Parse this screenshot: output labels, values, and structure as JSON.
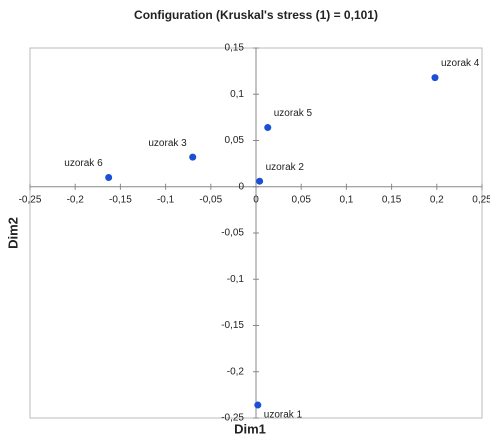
{
  "chart_data": {
    "type": "scatter",
    "title": "Configuration (Kruskal's stress (1) = 0,101)",
    "x_label": "Dim1",
    "y_label": "Dim2",
    "point_labels": [
      "uzorak 1",
      "uzorak 2",
      "uzorak 3",
      "uzorak 4",
      "uzorak 5",
      "uzorak 6"
    ],
    "x": [
      0.002,
      0.004,
      -0.07,
      0.198,
      0.013,
      -0.163
    ],
    "values": [
      -0.236,
      0.006,
      0.032,
      0.118,
      0.064,
      0.01
    ],
    "color": "#1a4fd6",
    "xlim": [
      -0.25,
      0.25
    ],
    "xticks": [
      {
        "value": -0.25,
        "label": "-0,25"
      },
      {
        "value": -0.2,
        "label": "-0,2"
      },
      {
        "value": -0.15,
        "label": "-0,15"
      },
      {
        "value": -0.1,
        "label": "-0,1"
      },
      {
        "value": -0.05,
        "label": "-0,05"
      },
      0,
      {
        "value": 0.05,
        "label": "0,05"
      },
      {
        "value": 0.1,
        "label": "0,1"
      },
      {
        "value": 0.15,
        "label": "0,15"
      },
      {
        "value": 0.2,
        "label": "0,2"
      },
      {
        "value": 0.25,
        "label": "0,25"
      }
    ],
    "ylim": [
      -0.25,
      0.15
    ],
    "yticks": [
      {
        "value": -0.25,
        "label": "-0,25"
      },
      {
        "value": -0.2,
        "label": "-0,2"
      },
      {
        "value": -0.15,
        "label": "-0,15"
      },
      {
        "value": -0.1,
        "label": "-0,1"
      },
      {
        "value": -0.05,
        "label": "-0,05"
      },
      0,
      {
        "value": 0.05,
        "label": "0,05"
      },
      {
        "value": 0.1,
        "label": "0,1"
      },
      {
        "value": 0.15,
        "label": "0,15"
      }
    ]
  }
}
